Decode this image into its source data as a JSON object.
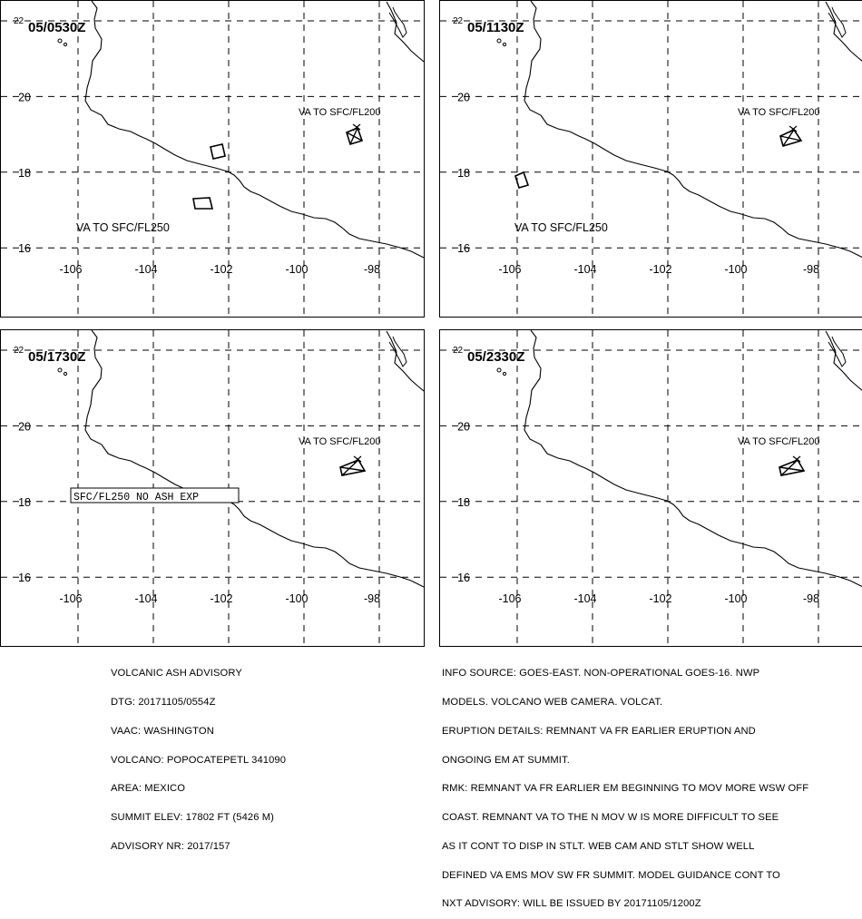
{
  "panels": [
    {
      "time": "05/0530Z",
      "labels": [
        "VA TO SFC/FL200",
        "VA TO SFC/FL250"
      ],
      "boxed_label": ""
    },
    {
      "time": "05/1130Z",
      "labels": [
        "VA TO SFC/FL200",
        "VA TO SFC/FL250"
      ],
      "boxed_label": ""
    },
    {
      "time": "05/1730Z",
      "labels": [
        "VA TO SFC/FL200"
      ],
      "boxed_label": "SFC/FL250 NO ASH EXP"
    },
    {
      "time": "05/2330Z",
      "labels": [
        "VA TO SFC/FL200"
      ],
      "boxed_label": ""
    }
  ],
  "axes": {
    "lon_labels": [
      "-106",
      "-104",
      "-102",
      "-100",
      "-98"
    ],
    "lat_labels": [
      "22",
      "20",
      "18",
      "16"
    ]
  },
  "advisory": {
    "lines": [
      "VOLCANIC ASH ADVISORY",
      "DTG: 20171105/0554Z",
      "VAAC: WASHINGTON",
      "VOLCANO: POPOCATEPETL 341090",
      "AREA: MEXICO",
      "SUMMIT ELEV: 17802 FT (5426 M)",
      "ADVISORY NR: 2017/157"
    ]
  },
  "info": {
    "lines": [
      "INFO SOURCE: GOES-EAST. NON-OPERATIONAL GOES-16. NWP",
      "MODELS. VOLCANO WEB CAMERA. VOLCAT.",
      "ERUPTION DETAILS: REMNANT VA FR EARLIER ERUPTION AND",
      "ONGOING EM AT SUMMIT.",
      "RMK: REMNANT VA FR EARLIER EM BEGINNING TO MOV MORE WSW OFF",
      "COAST. REMNANT VA TO THE N MOV W IS MORE DIFFICULT TO SEE",
      "AS IT CONT TO DISP IN STLT. WEB CAM AND STLT SHOW WELL",
      "DEFINED VA EMS MOV SW FR SUMMIT. MODEL GUIDANCE CONT TO",
      "NXT ADVISORY: WILL BE ISSUED BY 20171105/1200Z"
    ]
  }
}
